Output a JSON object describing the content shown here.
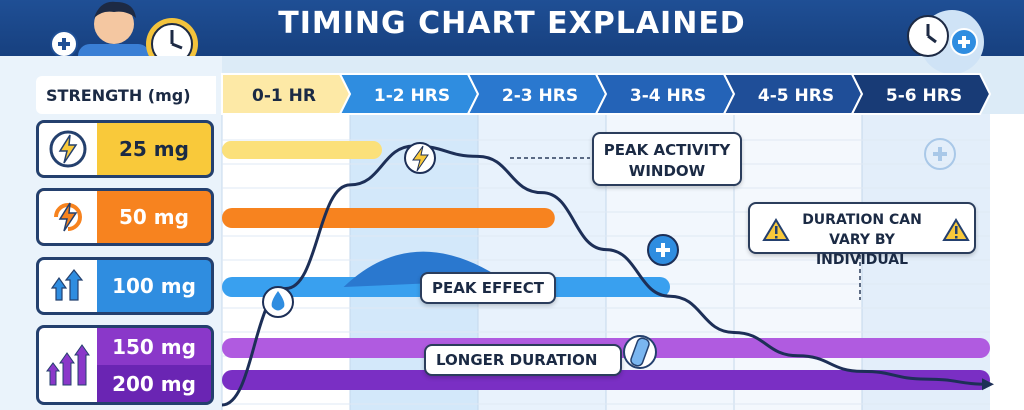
{
  "header": {
    "title": "TIMING CHART EXPLAINED"
  },
  "strength_header": "STRENGTH (mg)",
  "strengths": [
    {
      "label": "25 mg",
      "color": "#f9c93a",
      "text_color": "#1b2a44",
      "icon": "lightning-icon"
    },
    {
      "label": "50 mg",
      "color": "#f7831f",
      "text_color": "#ffffff",
      "icon": "lightning-cycle-icon"
    },
    {
      "label": "100 mg",
      "color": "#2f8de0",
      "text_color": "#ffffff",
      "icon": "up-arrows-icon"
    },
    {
      "label": "150 mg",
      "color": "#8a38c9",
      "text_color": "#ffffff",
      "icon": "triple-up-arrows-icon"
    },
    {
      "label": "200 mg",
      "color": "#6a25b3",
      "text_color": "#ffffff",
      "icon": "triple-up-arrows-icon"
    }
  ],
  "chart_data": {
    "type": "bar",
    "title": "TIMING CHART EXPLAINED",
    "categories": [
      "0-1 HR",
      "1-2 HRS",
      "2-3 HRS",
      "3-4 HRS",
      "4-5 HRS",
      "5-6 HRS"
    ],
    "bars": [
      {
        "name": "25 mg",
        "start_hr": 0,
        "end_hr": 1.25,
        "color": "#fbe07a"
      },
      {
        "name": "50 mg",
        "start_hr": 0,
        "end_hr": 2.6,
        "color": "#f7831f"
      },
      {
        "name": "100 mg",
        "start_hr": 0,
        "end_hr": 3.5,
        "color": "#39a0ef"
      },
      {
        "name": "150 mg",
        "start_hr": 0,
        "end_hr": 6.0,
        "color": "#b05be0"
      },
      {
        "name": "200 mg",
        "start_hr": 0,
        "end_hr": 6.0,
        "color": "#7a2fc4"
      }
    ],
    "effect_curve": {
      "x": [
        0,
        0.5,
        1.0,
        1.5,
        2.0,
        2.5,
        3.0,
        3.5,
        4.0,
        4.5,
        5.0,
        5.5,
        6.0
      ],
      "y": [
        0,
        0.45,
        0.85,
        1.0,
        0.96,
        0.82,
        0.6,
        0.42,
        0.28,
        0.19,
        0.13,
        0.1,
        0.08
      ]
    },
    "header_colors": [
      "#fde9a6",
      "#2f8de0",
      "#2a78cf",
      "#2463b7",
      "#1f4e98",
      "#183b76"
    ],
    "annotations": {
      "peak_activity": "PEAK ACTIVITY WINDOW",
      "duration_vary": "DURATION CAN VARY BY INDIVIDUAL",
      "peak_effect": "PEAK EFFECT",
      "longer_duration": "LONGER DURATION"
    }
  }
}
